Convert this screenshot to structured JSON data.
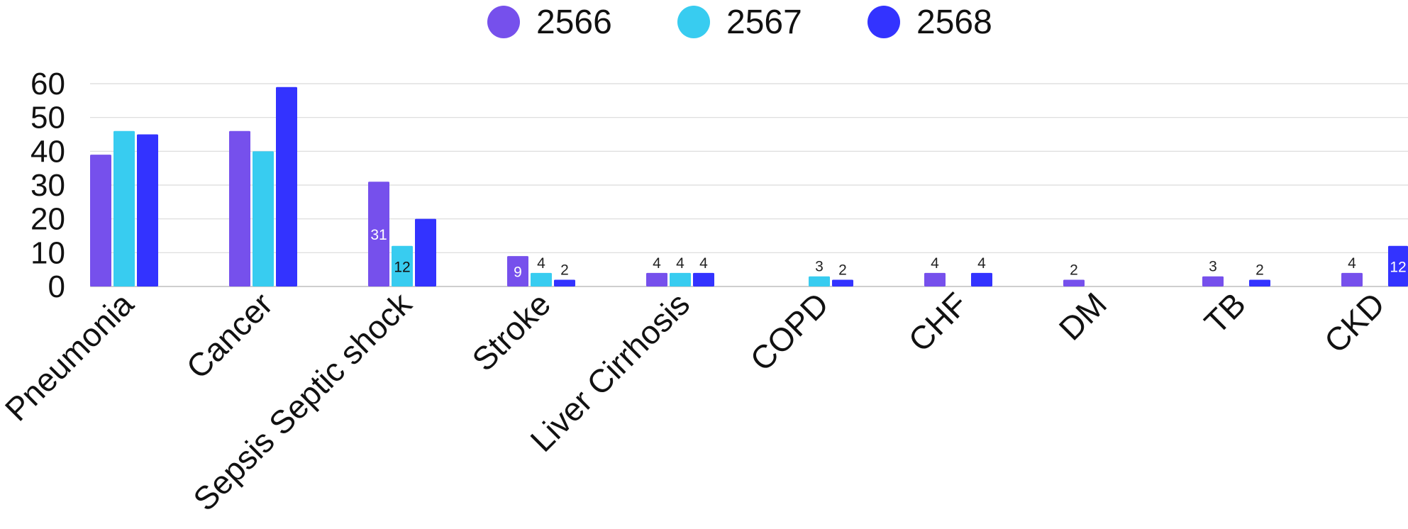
{
  "chart_data": {
    "type": "bar",
    "categories": [
      "Pneumonia",
      "Cancer",
      "Sepsis Septic shock",
      "Stroke",
      "Liver Cirrhosis",
      "COPD",
      "CHF",
      "DM",
      "TB",
      "CKD"
    ],
    "series": [
      {
        "name": "2566",
        "color": "#7650ec",
        "values": [
          39,
          46,
          31,
          9,
          4,
          0,
          4,
          2,
          3,
          4
        ]
      },
      {
        "name": "2567",
        "color": "#38ccf0",
        "values": [
          46,
          40,
          12,
          4,
          4,
          3,
          0,
          0,
          0,
          0
        ]
      },
      {
        "name": "2568",
        "color": "#3333ff",
        "values": [
          45,
          59,
          20,
          2,
          4,
          2,
          4,
          0,
          2,
          12
        ]
      }
    ],
    "data_labels": {
      "2566": [
        "",
        "",
        "31",
        "9",
        "4",
        "",
        "4",
        "2",
        "3",
        "4"
      ],
      "2567": [
        "",
        "",
        "12",
        "4",
        "4",
        "3",
        "",
        "",
        "",
        ""
      ],
      "2568": [
        "",
        "",
        "",
        "2",
        "4",
        "2",
        "4",
        "",
        "2",
        "12"
      ]
    },
    "y_ticks": [
      "0",
      "10",
      "20",
      "30",
      "40",
      "50",
      "60"
    ],
    "ylim": [
      0,
      60
    ],
    "xlabel": "",
    "ylabel": "",
    "grid": true,
    "legend_position": "top-center"
  }
}
